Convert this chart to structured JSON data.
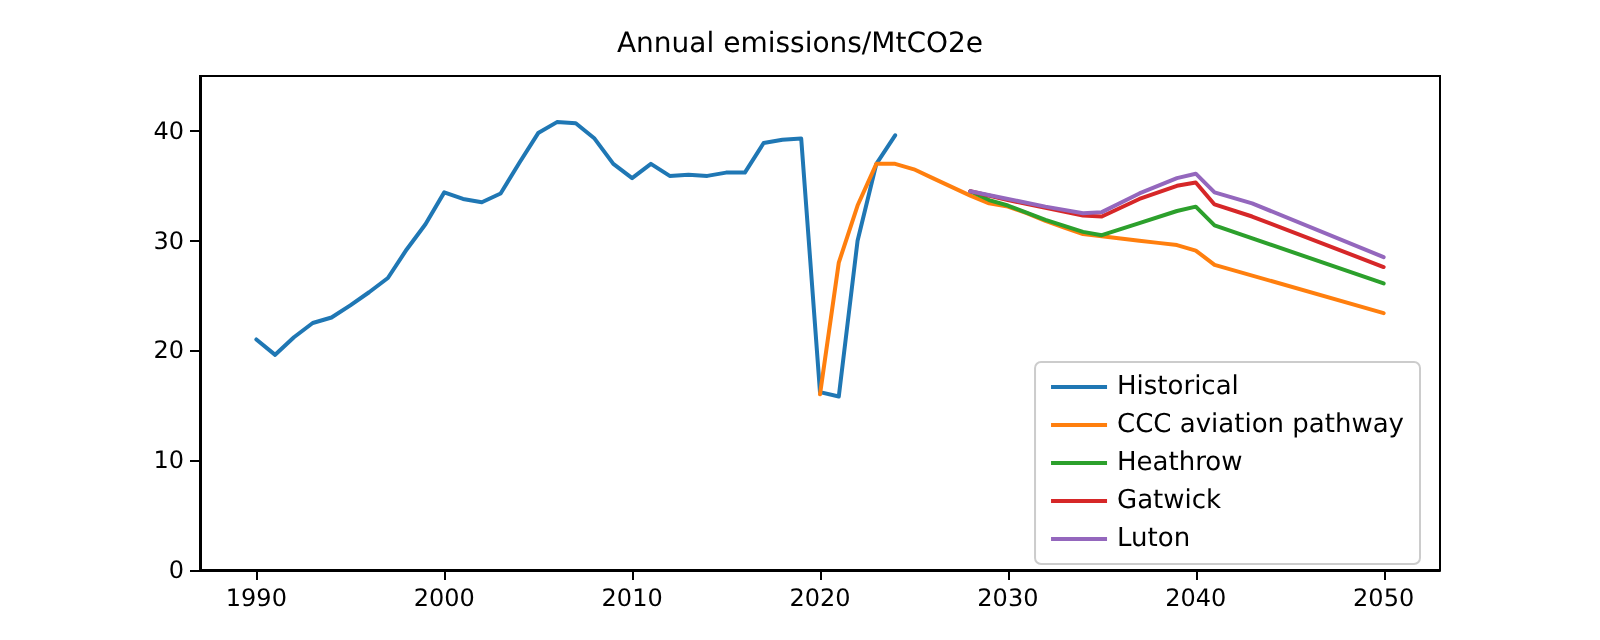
{
  "chart_data": {
    "type": "line",
    "title": "Annual emissions/MtCO2e",
    "xlim": [
      1987,
      2053
    ],
    "xticks": [
      1990,
      2000,
      2010,
      2020,
      2030,
      2040,
      2050
    ],
    "ylim": [
      0,
      45
    ],
    "yticks": [
      0,
      10,
      20,
      30,
      40
    ],
    "grid": false,
    "legend": "bottom right",
    "line_style": "solid",
    "marker": "none",
    "series": [
      {
        "name": "Historical",
        "color": "#1f77b4",
        "x": [
          1990,
          1991,
          1992,
          1993,
          1994,
          1995,
          1996,
          1997,
          1998,
          1999,
          2000,
          2001,
          2002,
          2003,
          2004,
          2005,
          2006,
          2007,
          2008,
          2009,
          2010,
          2011,
          2012,
          2013,
          2014,
          2015,
          2016,
          2017,
          2018,
          2019,
          2020,
          2021,
          2022,
          2023,
          2024
        ],
        "values": [
          21,
          19.6,
          21.2,
          22.5,
          23,
          24.1,
          25.3,
          26.6,
          29.2,
          31.5,
          34.4,
          33.8,
          33.5,
          34.3,
          37.1,
          39.8,
          40.8,
          40.7,
          39.3,
          37,
          35.7,
          37,
          35.9,
          36,
          35.9,
          36.2,
          36.2,
          38.9,
          39.2,
          39.3,
          16.2,
          15.8,
          30,
          37,
          39.6
        ]
      },
      {
        "name": "CCC aviation pathway",
        "color": "#ff7f0e",
        "x": [
          2020,
          2021,
          2022,
          2023,
          2024,
          2025,
          2026,
          2027,
          2028,
          2029,
          2030,
          2031,
          2032,
          2033,
          2034,
          2035,
          2036,
          2037,
          2038,
          2039,
          2040,
          2041,
          2050
        ],
        "values": [
          16,
          28,
          33.2,
          37,
          37,
          36.5,
          35.7,
          34.9,
          34.1,
          33.4,
          33.1,
          32.5,
          31.8,
          31.2,
          30.6,
          30.4,
          30.2,
          30,
          29.8,
          29.6,
          29.1,
          27.8,
          23.4
        ]
      },
      {
        "name": "Heathrow",
        "color": "#2ca02c",
        "x": [
          2028,
          2029,
          2030,
          2032,
          2034,
          2035,
          2037,
          2039,
          2040,
          2041,
          2050
        ],
        "values": [
          34.5,
          33.7,
          33.2,
          31.9,
          30.8,
          30.5,
          31.6,
          32.7,
          33.1,
          31.4,
          26.1
        ]
      },
      {
        "name": "Gatwick",
        "color": "#d62728",
        "x": [
          2028,
          2030,
          2032,
          2034,
          2035,
          2037,
          2039,
          2040,
          2041,
          2043,
          2050
        ],
        "values": [
          34.5,
          33.7,
          33.0,
          32.3,
          32.2,
          33.8,
          35.0,
          35.3,
          33.3,
          32.2,
          27.6
        ]
      },
      {
        "name": "Luton",
        "color": "#9467bd",
        "x": [
          2028,
          2030,
          2032,
          2034,
          2035,
          2037,
          2039,
          2040,
          2041,
          2043,
          2050
        ],
        "values": [
          34.5,
          33.8,
          33.1,
          32.5,
          32.6,
          34.3,
          35.7,
          36.1,
          34.4,
          33.4,
          28.5
        ]
      }
    ]
  }
}
